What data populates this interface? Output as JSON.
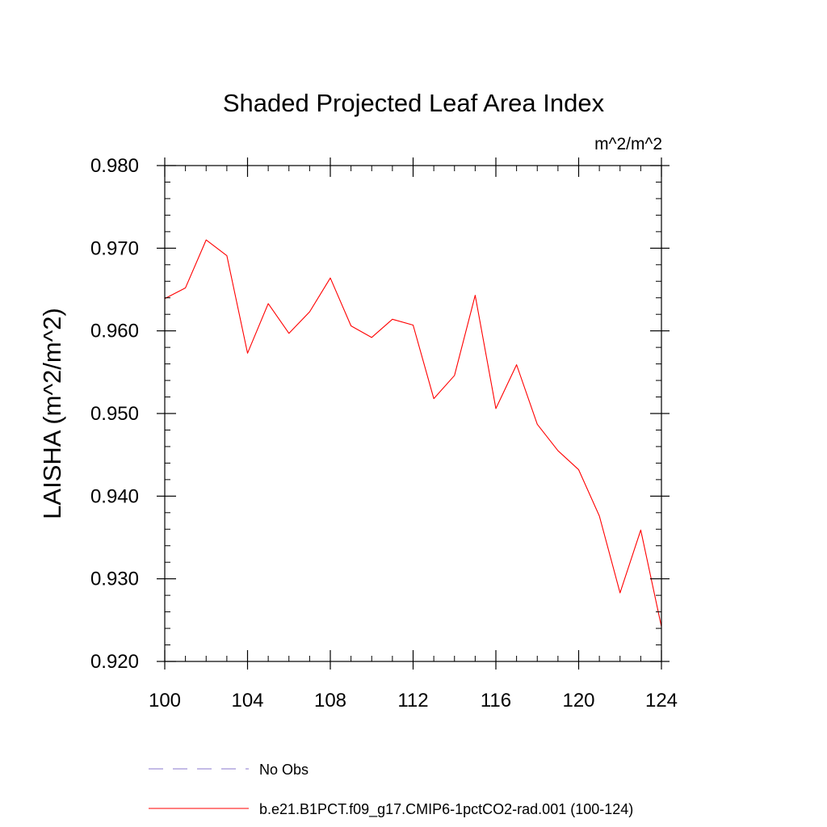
{
  "chart_data": {
    "type": "line",
    "title": "Shaded Projected Leaf Area Index",
    "units": "m^2/m^2",
    "ylabel": "LAISHA  (m^2/m^2)",
    "xlabel": "",
    "xlim": [
      100,
      124
    ],
    "ylim": [
      0.92,
      0.98
    ],
    "x_ticks": [
      100,
      104,
      108,
      112,
      116,
      120,
      124
    ],
    "x_tick_labels": [
      "100",
      "104",
      "108",
      "112",
      "116",
      "120",
      "124"
    ],
    "y_ticks": [
      0.92,
      0.93,
      0.94,
      0.95,
      0.96,
      0.97,
      0.98
    ],
    "y_tick_labels": [
      "0.920",
      "0.930",
      "0.940",
      "0.950",
      "0.960",
      "0.970",
      "0.980"
    ],
    "grid": false,
    "legend_position": "bottom",
    "series": [
      {
        "name": "b.e21.B1PCT.f09_g17.CMIP6-1pctCO2-rad.001 (100-124)",
        "color": "#ff0000",
        "style": "solid",
        "x": [
          100,
          101,
          102,
          103,
          104,
          105,
          106,
          107,
          108,
          109,
          110,
          111,
          112,
          113,
          114,
          115,
          116,
          117,
          118,
          119,
          120,
          121,
          122,
          123,
          124
        ],
        "y": [
          0.9639,
          0.9652,
          0.971,
          0.9691,
          0.9573,
          0.9633,
          0.9597,
          0.9623,
          0.9664,
          0.9606,
          0.9592,
          0.9614,
          0.9607,
          0.9518,
          0.9546,
          0.9643,
          0.9506,
          0.9559,
          0.9487,
          0.9455,
          0.9432,
          0.9376,
          0.9283,
          0.9359,
          0.9242
        ]
      },
      {
        "name": "No Obs",
        "color": "#8877cc",
        "style": "dashed",
        "x": [],
        "y": []
      }
    ]
  }
}
